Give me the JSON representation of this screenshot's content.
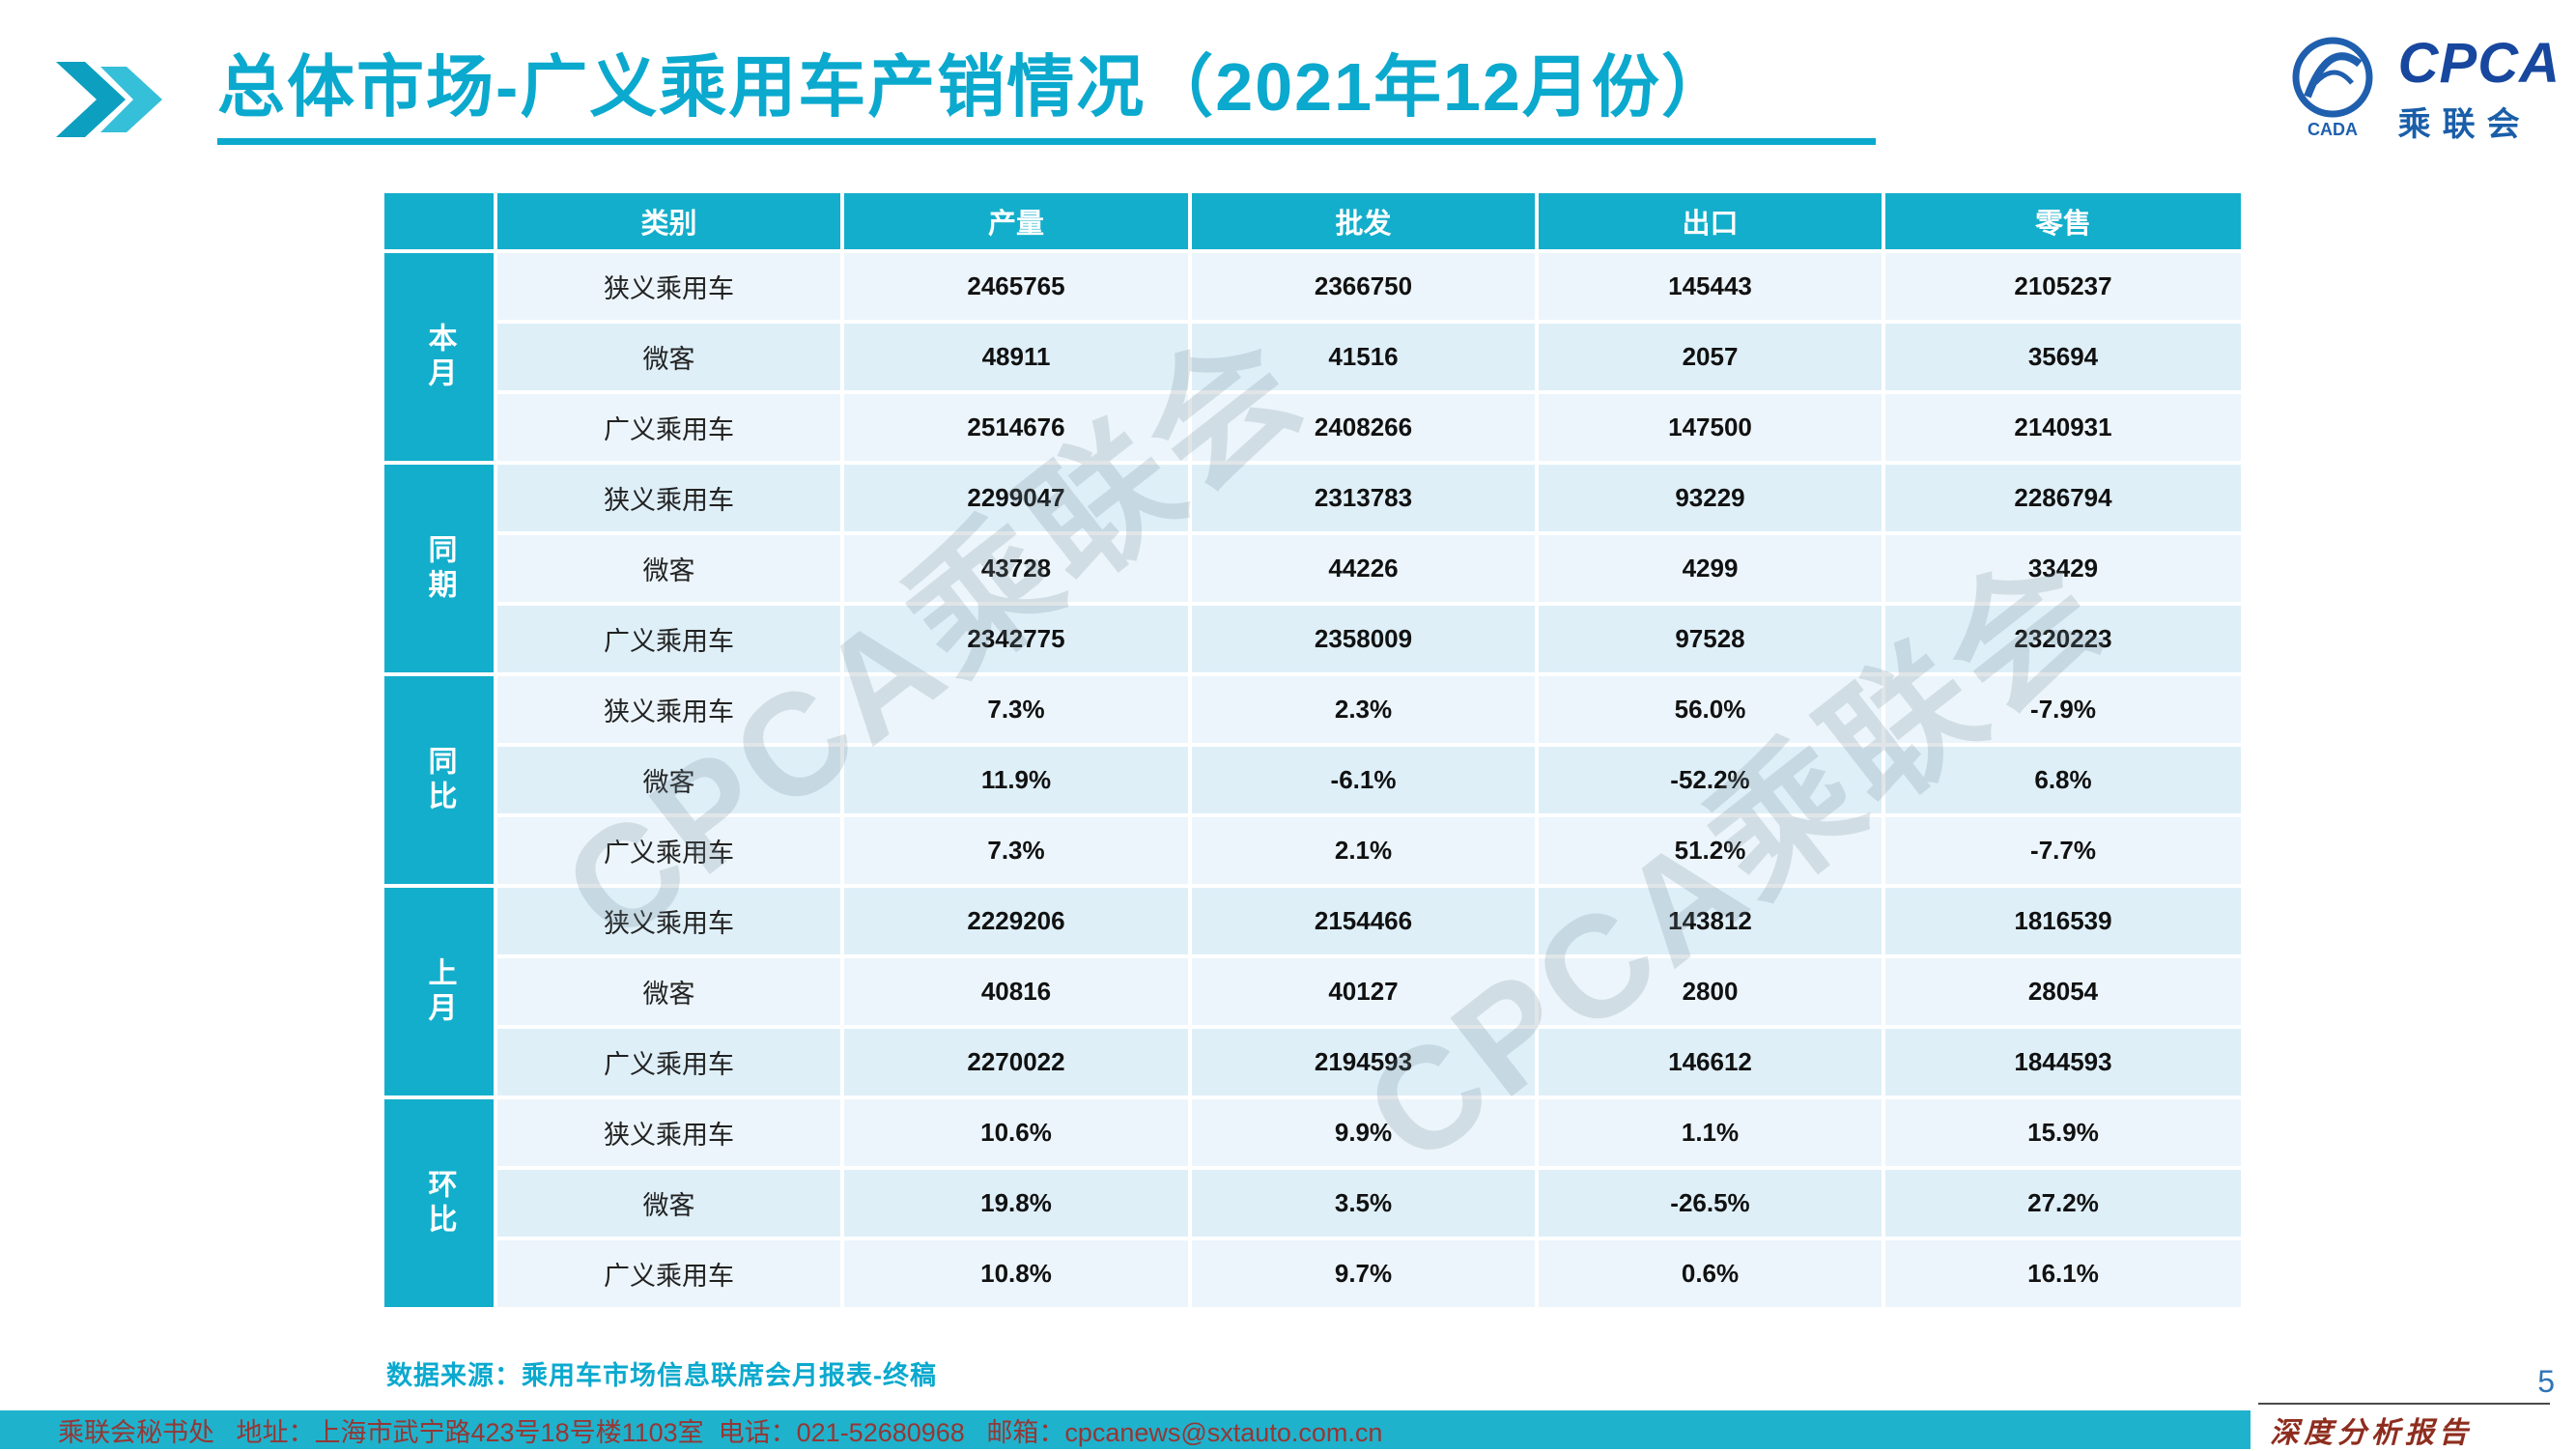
{
  "title": "总体市场-广义乘用车产销情况（2021年12月份）",
  "logo": {
    "name": "CPCA",
    "subtitle": "乘联会",
    "emblem_text": "CADA"
  },
  "watermark": "CPCA乘联会",
  "table": {
    "headers": [
      "类别",
      "产量",
      "批发",
      "出口",
      "零售"
    ],
    "groups": [
      {
        "label": "本月",
        "rows": [
          {
            "category": "狭义乘用车",
            "values": [
              "2465765",
              "2366750",
              "145443",
              "2105237"
            ]
          },
          {
            "category": "微客",
            "values": [
              "48911",
              "41516",
              "2057",
              "35694"
            ]
          },
          {
            "category": "广义乘用车",
            "values": [
              "2514676",
              "2408266",
              "147500",
              "2140931"
            ]
          }
        ]
      },
      {
        "label": "同期",
        "rows": [
          {
            "category": "狭义乘用车",
            "values": [
              "2299047",
              "2313783",
              "93229",
              "2286794"
            ]
          },
          {
            "category": "微客",
            "values": [
              "43728",
              "44226",
              "4299",
              "33429"
            ]
          },
          {
            "category": "广义乘用车",
            "values": [
              "2342775",
              "2358009",
              "97528",
              "2320223"
            ]
          }
        ]
      },
      {
        "label": "同比",
        "rows": [
          {
            "category": "狭义乘用车",
            "values": [
              "7.3%",
              "2.3%",
              "56.0%",
              "-7.9%"
            ]
          },
          {
            "category": "微客",
            "values": [
              "11.9%",
              "-6.1%",
              "-52.2%",
              "6.8%"
            ]
          },
          {
            "category": "广义乘用车",
            "values": [
              "7.3%",
              "2.1%",
              "51.2%",
              "-7.7%"
            ]
          }
        ]
      },
      {
        "label": "上月",
        "rows": [
          {
            "category": "狭义乘用车",
            "values": [
              "2229206",
              "2154466",
              "143812",
              "1816539"
            ]
          },
          {
            "category": "微客",
            "values": [
              "40816",
              "40127",
              "2800",
              "28054"
            ]
          },
          {
            "category": "广义乘用车",
            "values": [
              "2270022",
              "2194593",
              "146612",
              "1844593"
            ]
          }
        ]
      },
      {
        "label": "环比",
        "rows": [
          {
            "category": "狭义乘用车",
            "values": [
              "10.6%",
              "9.9%",
              "1.1%",
              "15.9%"
            ]
          },
          {
            "category": "微客",
            "values": [
              "19.8%",
              "3.5%",
              "-26.5%",
              "27.2%"
            ]
          },
          {
            "category": "广义乘用车",
            "values": [
              "10.8%",
              "9.7%",
              "0.6%",
              "16.1%"
            ]
          }
        ]
      }
    ]
  },
  "source_note": "数据来源：乘用车市场信息联席会月报表-终稿",
  "footer": {
    "text": "乘联会秘书处   地址：上海市武宁路423号18号楼1103室  电话：021-52680968   邮箱：cpcanews@sxtauto.com.cn",
    "page_number": "5",
    "report_tag": "深度分析报告"
  },
  "colors": {
    "teal": "#13AECB",
    "row_light": "#ECF5FB",
    "row_dark": "#DEEFF8",
    "dark_red": "#953735",
    "report_red": "#8E2D1E",
    "page_blue": "#2E74B5",
    "logo_blue": "#17479E"
  }
}
